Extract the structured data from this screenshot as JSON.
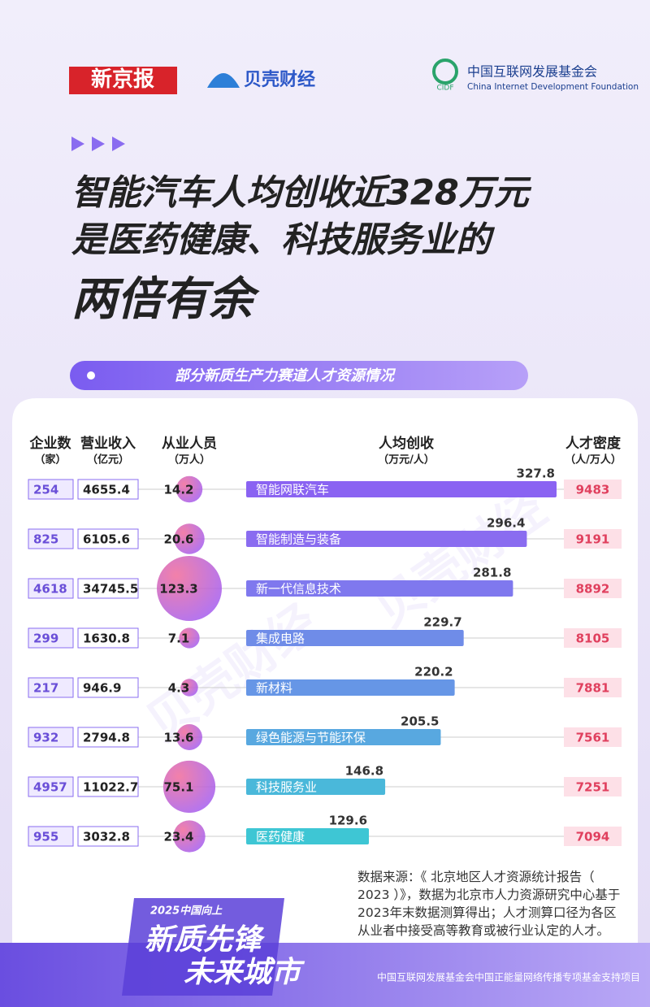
{
  "header": {
    "logos": [
      "新京报",
      "贝壳财经",
      "中国互联网发展基金会",
      "CIDF",
      "China Internet Development Foundation"
    ]
  },
  "title": [
    "智能汽车人均创收近328万元",
    "是医药健康、科技服务业的",
    "两倍有余"
  ],
  "chart_data": {
    "type": "bar",
    "title": "部分新质生产力赛道人才资源情况",
    "categories": [
      "智能网联汽车",
      "智能制造与装备",
      "新一代信息技术",
      "集成电路",
      "新材料",
      "绿色能源与节能环保",
      "科技服务业",
      "医药健康"
    ],
    "series": [
      {
        "name": "企业数",
        "unit": "（家）",
        "values": [
          254,
          825,
          4618,
          299,
          217,
          932,
          4957,
          955
        ]
      },
      {
        "name": "营业收入",
        "unit": "（亿元）",
        "values": [
          4655.4,
          6105.6,
          34745.5,
          1630.8,
          946.9,
          2794.8,
          11022.7,
          3032.8
        ]
      },
      {
        "name": "从业人员",
        "unit": "（万人）",
        "values": [
          14.2,
          20.6,
          123.3,
          7.1,
          4.3,
          13.6,
          75.1,
          23.4
        ]
      },
      {
        "name": "人均创收",
        "unit": "（万元/人）",
        "values": [
          327.8,
          296.4,
          281.8,
          229.7,
          220.2,
          205.5,
          146.8,
          129.6
        ],
        "colors": [
          "#8a63f2",
          "#8a6cf0",
          "#7f78ee",
          "#6f8ce8",
          "#6696e6",
          "#58a8e0",
          "#4ab8da",
          "#3ec6d4"
        ]
      },
      {
        "name": "人才密度",
        "unit": "（人/万人）",
        "values": [
          9483,
          9191,
          8892,
          8105,
          7881,
          7561,
          7251,
          7094
        ]
      }
    ]
  },
  "note": "数据来源：《 北京地区人才资源统计报告（ 2023 ）》，数据为北京市人力资源研究中心基于2023年末数据测算得出；人才测算口径为各区从业者中接受高等教育或被行业认定的人才。",
  "footer": {
    "tag": "2025中国向上",
    "slogan": [
      "新质先锋",
      "未来城市"
    ],
    "support": "中国互联网发展基金会中国正能量网络传播专项基金支持项目"
  }
}
